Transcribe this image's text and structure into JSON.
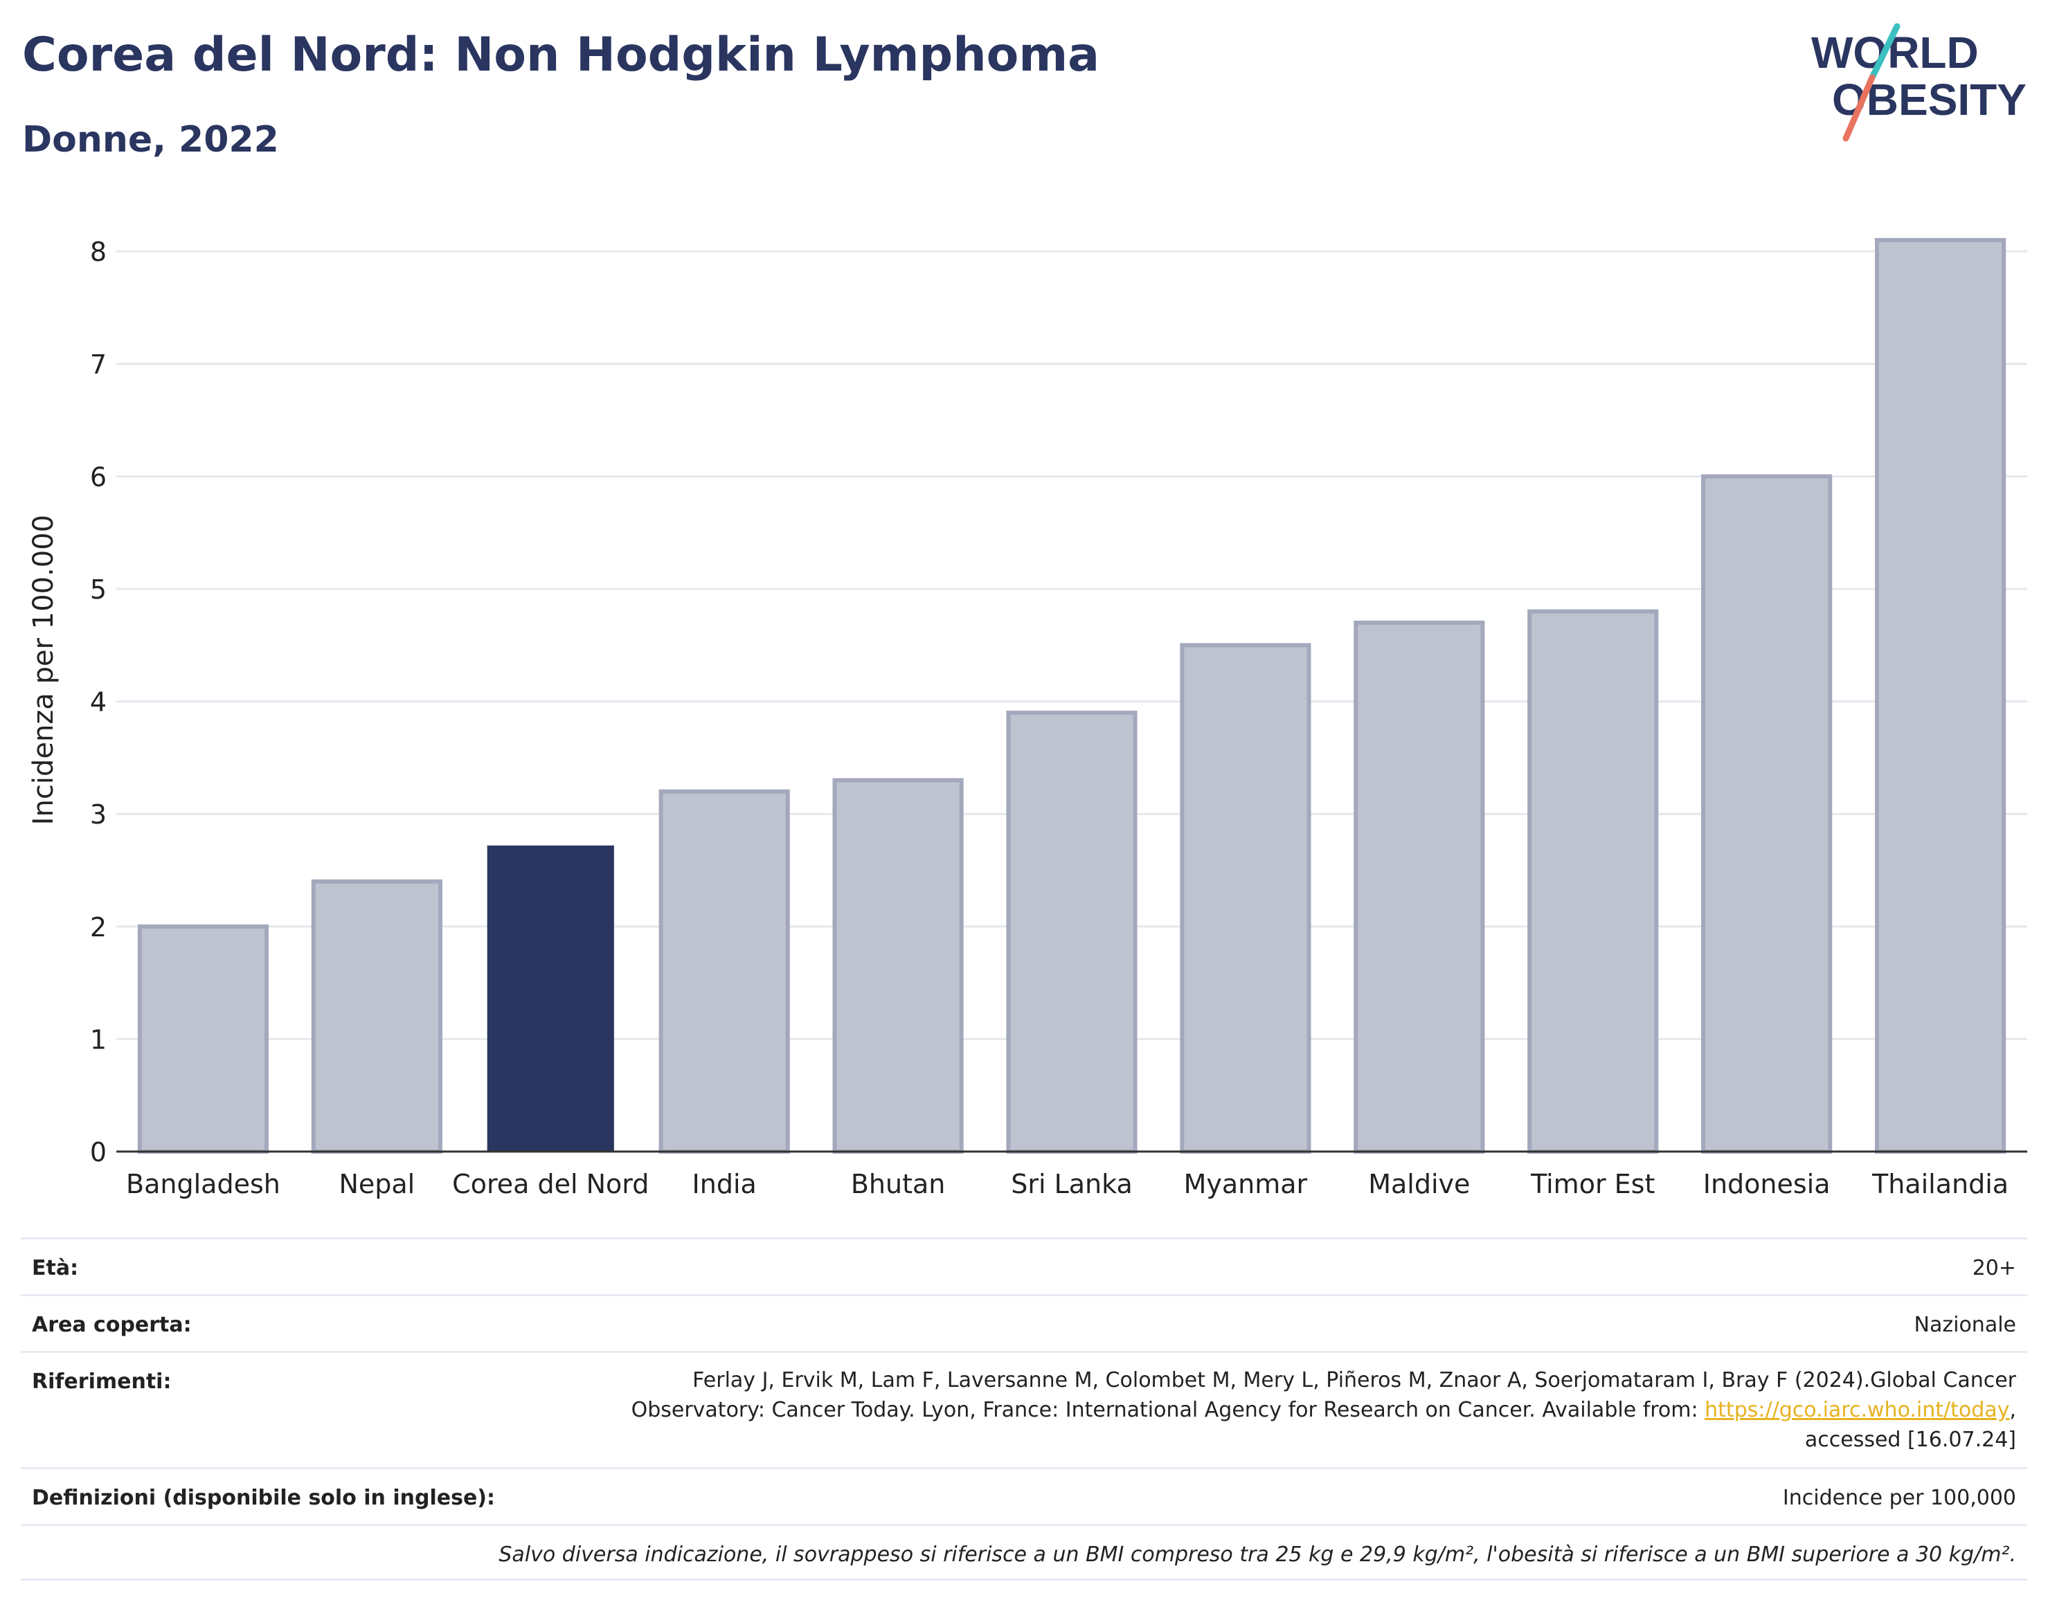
{
  "header": {
    "title": "Corea del Nord: Non Hodgkin Lymphoma",
    "subtitle": "Donne, 2022"
  },
  "logo": {
    "line1": "WORLD",
    "line2": "OBESITY",
    "accent_color_teal": "#3bbfbf",
    "accent_color_coral": "#e8735f",
    "text_color": "#2a3560"
  },
  "chart_data": {
    "type": "bar",
    "title": "",
    "xlabel": "",
    "ylabel": "Incidenza per 100.000",
    "ylim": [
      0,
      8.2
    ],
    "yticks": [
      0,
      1,
      2,
      3,
      4,
      5,
      6,
      7,
      8
    ],
    "grid": true,
    "categories": [
      "Bangladesh",
      "Nepal",
      "Corea del Nord",
      "India",
      "Bhutan",
      "Sri Lanka",
      "Myanmar",
      "Maldive",
      "Timor Est",
      "Indonesia",
      "Thailandia"
    ],
    "values": [
      2.0,
      2.4,
      2.72,
      3.2,
      3.3,
      3.9,
      4.5,
      4.7,
      4.8,
      6.0,
      8.1
    ],
    "highlight": "Corea del Nord",
    "colors": {
      "default_fill": "#bfc3d0",
      "default_stroke": "#a3a8bc",
      "highlight_fill": "#2a3560",
      "grid": "#e6e8ee",
      "axis": "#333333"
    }
  },
  "info_table": {
    "age_label": "Età:",
    "age_value": "20+",
    "area_label": "Area coperta:",
    "area_value": "Nazionale",
    "references_label": "Riferimenti:",
    "references_line1": "Ferlay J, Ervik M, Lam F, Laversanne M, Colombet M, Mery L, Piñeros M, Znaor A, Soerjomataram I, Bray F (2024).Global Cancer",
    "references_line2_prefix": "Observatory: Cancer Today. Lyon, France: International Agency for Research on Cancer. Available from: ",
    "references_link": "https://gco.iarc.who.int/today",
    "references_line2_suffix": ",",
    "references_line3": "accessed [16.07.24]",
    "definitions_label": "Definizioni (disponibile solo in inglese):",
    "definitions_value": "Incidence per 100,000",
    "note": "Salvo diversa indicazione, il sovrappeso si riferisce a un BMI compreso tra 25 kg e 29,9 kg/m², l'obesità si riferisce a un BMI superiore a 30 kg/m²."
  }
}
